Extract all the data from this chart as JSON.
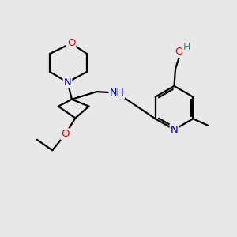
{
  "bg_color": "#e8e8e8",
  "atom_colors": {
    "C": "#000000",
    "N": "#0000cd",
    "O": "#ff0000",
    "H": "#2e8b8b"
  },
  "bond_color": "#000000",
  "bond_width": 1.6
}
